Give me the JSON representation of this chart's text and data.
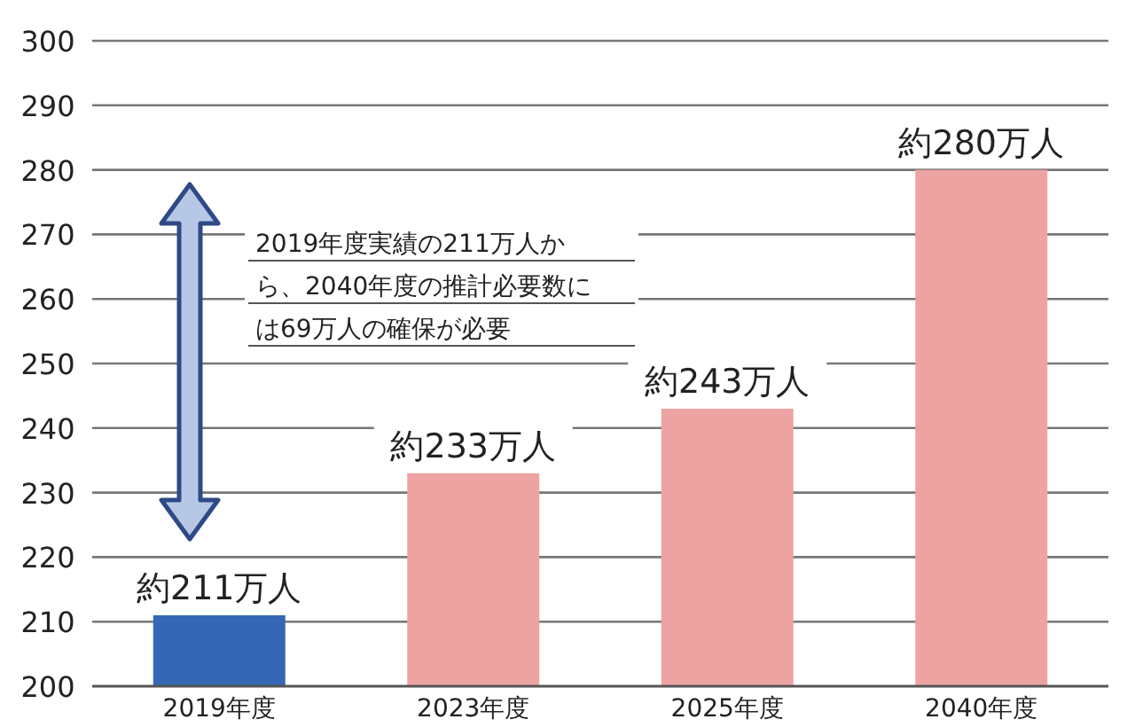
{
  "chart_data": {
    "type": "bar",
    "categories": [
      "2019年度",
      "2023年度",
      "2025年度",
      "2040年度"
    ],
    "values": [
      211,
      233,
      243,
      280
    ],
    "colors": [
      "#3567b5",
      "#eea3a3",
      "#eea3a3",
      "#eea3a3"
    ],
    "value_labels": [
      "約211万人",
      "約233万人",
      "約243万人",
      "約280万人"
    ],
    "ylim": [
      200,
      300
    ],
    "yticks": [
      200,
      210,
      220,
      230,
      240,
      250,
      260,
      270,
      280,
      290,
      300
    ],
    "grid": "y",
    "annotations": [
      "2019年度実績の211万人から、2040年度の推計必要数には69万人の確保が必要"
    ]
  }
}
